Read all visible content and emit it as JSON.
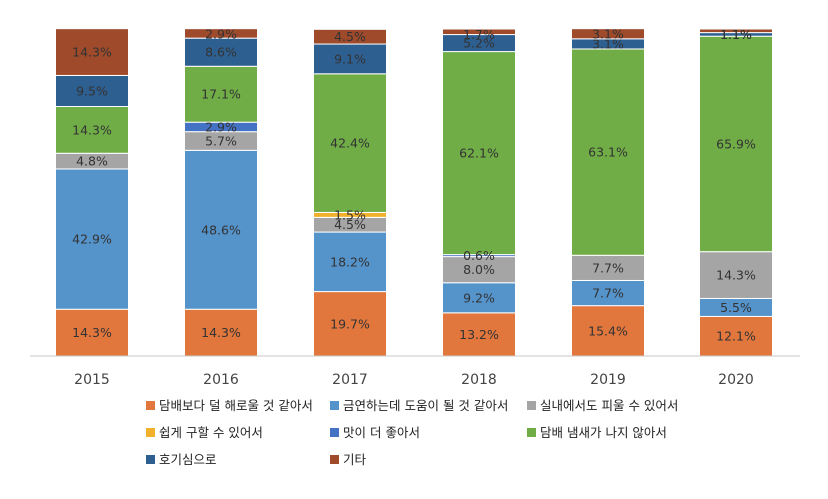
{
  "chart_data": {
    "type": "bar",
    "stacked": true,
    "percent": true,
    "categories": [
      "2015",
      "2016",
      "2017",
      "2018",
      "2019",
      "2020"
    ],
    "ylim": [
      0,
      100
    ],
    "grid": false,
    "legend_position": "bottom",
    "series": [
      {
        "name": "담배보다 덜 해로울 것 같아서",
        "color": "#E2773D",
        "values": [
          14.3,
          14.3,
          19.7,
          13.2,
          15.4,
          12.1
        ]
      },
      {
        "name": "금연하는데 도움이 될 것 같아서",
        "color": "#5593CB",
        "values": [
          42.9,
          48.6,
          18.2,
          9.2,
          7.7,
          5.5
        ]
      },
      {
        "name": "실내에서도 피울 수 있어서",
        "color": "#A5A5A5",
        "values": [
          4.8,
          5.7,
          4.5,
          8.0,
          7.7,
          14.3
        ]
      },
      {
        "name": "쉽게 구할 수 있어서",
        "color": "#F2B12B",
        "values": [
          0,
          0,
          1.5,
          0,
          0,
          0
        ]
      },
      {
        "name": "맛이 더 좋아서",
        "color": "#4472C4",
        "values": [
          0,
          2.9,
          0,
          0.6,
          0,
          0
        ]
      },
      {
        "name": "담배 냄새가 나지 않아서",
        "color": "#70AD47",
        "values": [
          14.3,
          17.1,
          42.4,
          62.1,
          63.1,
          65.9
        ]
      },
      {
        "name": "호기심으로",
        "color": "#2E5F91",
        "values": [
          9.5,
          8.6,
          9.1,
          5.2,
          3.1,
          1.1
        ]
      },
      {
        "name": "기타",
        "color": "#9E4A2B",
        "values": [
          14.3,
          2.9,
          4.5,
          1.7,
          3.1,
          1.1
        ]
      }
    ],
    "data_labels": [
      [
        "14.3%",
        "42.9%",
        "4.8%",
        "",
        "",
        "14.3%",
        "9.5%",
        "14.3%"
      ],
      [
        "14.3%",
        "48.6%",
        "5.7%",
        "",
        "2.9%",
        "17.1%",
        "8.6%",
        "2.9%"
      ],
      [
        "19.7%",
        "18.2%",
        "4.5%",
        "1.5%",
        "",
        "42.4%",
        "9.1%",
        "4.5%"
      ],
      [
        "13.2%",
        "9.2%",
        "8.0%",
        "",
        "0.6%",
        "62.1%",
        "5.2%",
        "1.7%"
      ],
      [
        "15.4%",
        "7.7%",
        "7.7%",
        "",
        "",
        "63.1%",
        "3.1%",
        "3.1%"
      ],
      [
        "12.1%",
        "5.5%",
        "14.3%",
        "",
        "",
        "65.9%",
        "1.1%",
        "1.1%"
      ]
    ]
  }
}
